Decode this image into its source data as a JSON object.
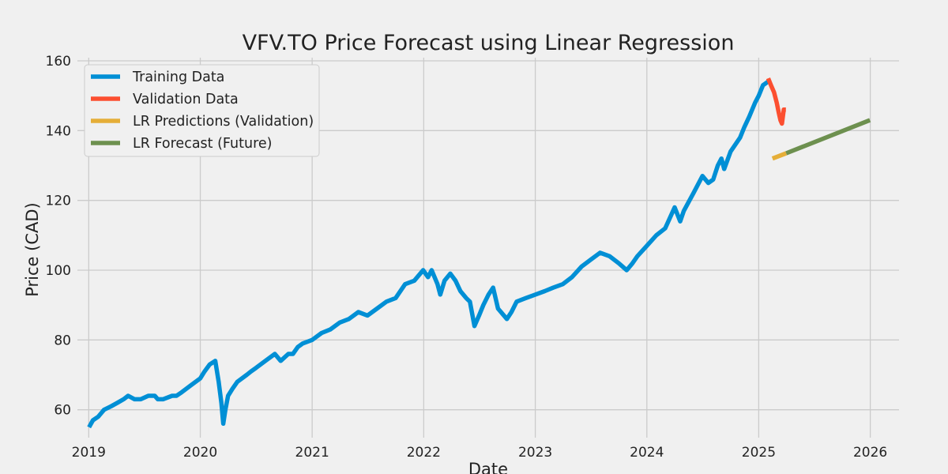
{
  "chart_data": {
    "type": "line",
    "title": "VFV.TO Price Forecast using Linear Regression",
    "xlabel": "Date",
    "ylabel": "Price (CAD)",
    "xlim": [
      "2018-11-25",
      "2026-04-05"
    ],
    "ylim": [
      52,
      160
    ],
    "x_ticks": [
      "2019",
      "2020",
      "2021",
      "2022",
      "2023",
      "2024",
      "2025",
      "2026"
    ],
    "y_ticks": [
      60,
      80,
      100,
      120,
      140,
      160
    ],
    "grid": true,
    "legend_position": "top-left",
    "series": [
      {
        "name": "Training Data",
        "color": "#008fd5",
        "x": [
          "2019-01-02",
          "2019-01-15",
          "2019-02-01",
          "2019-02-20",
          "2019-03-15",
          "2019-04-05",
          "2019-04-25",
          "2019-05-10",
          "2019-05-31",
          "2019-06-20",
          "2019-07-15",
          "2019-08-05",
          "2019-08-15",
          "2019-09-01",
          "2019-10-01",
          "2019-10-15",
          "2019-11-01",
          "2019-12-01",
          "2020-01-01",
          "2020-01-15",
          "2020-02-01",
          "2020-02-19",
          "2020-03-01",
          "2020-03-10",
          "2020-03-16",
          "2020-03-23",
          "2020-04-01",
          "2020-04-15",
          "2020-05-01",
          "2020-06-01",
          "2020-06-15",
          "2020-07-01",
          "2020-08-01",
          "2020-09-01",
          "2020-09-20",
          "2020-10-15",
          "2020-10-30",
          "2020-11-15",
          "2020-12-01",
          "2021-01-01",
          "2021-02-01",
          "2021-03-01",
          "2021-04-01",
          "2021-05-01",
          "2021-06-01",
          "2021-07-01",
          "2021-08-01",
          "2021-09-01",
          "2021-10-01",
          "2021-11-01",
          "2021-12-01",
          "2021-12-30",
          "2022-01-15",
          "2022-01-27",
          "2022-02-15",
          "2022-02-24",
          "2022-03-10",
          "2022-03-29",
          "2022-04-15",
          "2022-05-01",
          "2022-05-20",
          "2022-06-01",
          "2022-06-16",
          "2022-07-01",
          "2022-07-15",
          "2022-08-01",
          "2022-08-16",
          "2022-09-01",
          "2022-09-30",
          "2022-10-15",
          "2022-11-01",
          "2022-12-01",
          "2023-01-01",
          "2023-02-01",
          "2023-03-01",
          "2023-04-01",
          "2023-05-01",
          "2023-06-01",
          "2023-07-01",
          "2023-08-01",
          "2023-09-01",
          "2023-10-01",
          "2023-10-27",
          "2023-11-15",
          "2023-12-01",
          "2024-01-01",
          "2024-02-01",
          "2024-03-01",
          "2024-04-01",
          "2024-04-19",
          "2024-05-01",
          "2024-06-01",
          "2024-07-01",
          "2024-07-20",
          "2024-08-05",
          "2024-08-20",
          "2024-09-01",
          "2024-09-10",
          "2024-10-01",
          "2024-11-01",
          "2024-11-15",
          "2024-12-01",
          "2024-12-20",
          "2025-01-01",
          "2025-01-15",
          "2025-01-31"
        ],
        "values": [
          55,
          57,
          58,
          60,
          61,
          62,
          63,
          64,
          63,
          63,
          64,
          64,
          63,
          63,
          64,
          64,
          65,
          67,
          69,
          71,
          73,
          74,
          68,
          62,
          56,
          60,
          64,
          66,
          68,
          70,
          71,
          72,
          74,
          76,
          74,
          76,
          76,
          78,
          79,
          80,
          82,
          83,
          85,
          86,
          88,
          87,
          89,
          91,
          92,
          96,
          97,
          100,
          98,
          100,
          96,
          93,
          97,
          99,
          97,
          94,
          92,
          91,
          84,
          87,
          90,
          93,
          95,
          89,
          86,
          88,
          91,
          92,
          93,
          94,
          95,
          96,
          98,
          101,
          103,
          105,
          104,
          102,
          100,
          102,
          104,
          107,
          110,
          112,
          118,
          114,
          117,
          122,
          127,
          125,
          126,
          130,
          132,
          129,
          134,
          138,
          141,
          144,
          148,
          150,
          153,
          154
        ]
      },
      {
        "name": "Validation Data",
        "color": "#fc4f30",
        "x": [
          "2025-02-01",
          "2025-02-10",
          "2025-02-20",
          "2025-03-01",
          "2025-03-08",
          "2025-03-13",
          "2025-03-18",
          "2025-03-24",
          "2025-03-31"
        ],
        "values": [
          155,
          153,
          151,
          148,
          145,
          143,
          142,
          146,
          146
        ]
      },
      {
        "name": "LR Predictions (Validation)",
        "color": "#e5ae38",
        "x": [
          "2025-02-15",
          "2025-04-01"
        ],
        "values": [
          132,
          133.5
        ]
      },
      {
        "name": "LR Forecast (Future)",
        "color": "#6d904f",
        "x": [
          "2025-04-01",
          "2025-12-31"
        ],
        "values": [
          133.5,
          143
        ]
      }
    ]
  }
}
